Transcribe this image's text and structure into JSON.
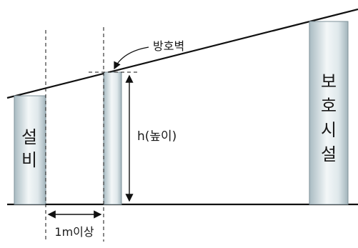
{
  "labels": {
    "equipment_line1": "설",
    "equipment_line2": "비",
    "protection_line1": "보",
    "protection_line2": "호",
    "protection_line3": "시",
    "protection_line4": "설",
    "barrier": "방호벽",
    "height": "h(높이)",
    "distance": "1m이상"
  },
  "colors": {
    "line": "#111111",
    "column_edge": "#8a9ba3",
    "column_mid": "#f4f8f9",
    "column_dark": "#b9c8cd"
  }
}
